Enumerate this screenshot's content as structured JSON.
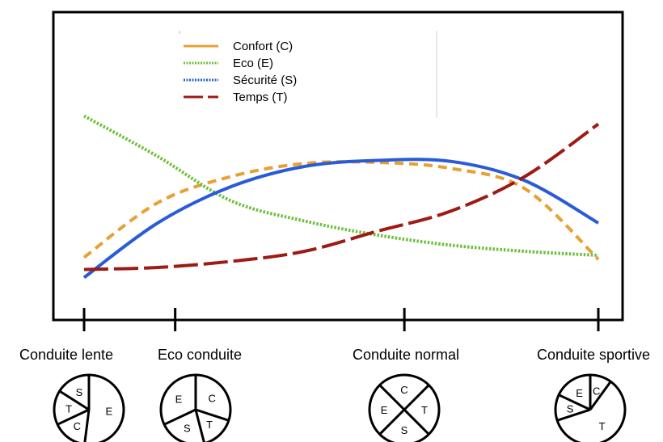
{
  "chart_data": {
    "type": "line",
    "title": "",
    "xlabel": "",
    "ylabel": "",
    "x": [
      0,
      0.5,
      1.0,
      1.5,
      2.0,
      2.5,
      3.0,
      3.5
    ],
    "grid": false,
    "legend_position": "top-left",
    "series": [
      {
        "name": "Confort (C)",
        "color": "#e8a033",
        "style": "dashed",
        "values": [
          1.5,
          4.2,
          5.5,
          6.15,
          6.2,
          5.9,
          4.9,
          1.4
        ]
      },
      {
        "name": "Eco (E)",
        "color": "#6cbf3c",
        "style": "dotted",
        "values": [
          8.5,
          6.5,
          4.3,
          3.3,
          2.6,
          2.1,
          1.8,
          1.6
        ]
      },
      {
        "name": "Sécurité (S)",
        "color": "#2a5bd7",
        "style": "dotted",
        "line_drawn_as": "solid",
        "values": [
          0.5,
          3.2,
          5.0,
          6.0,
          6.3,
          6.25,
          5.3,
          3.2
        ]
      },
      {
        "name": "Temps (T)",
        "color": "#9e1a14",
        "style": "long-dashed",
        "values": [
          0.9,
          1.0,
          1.3,
          1.8,
          2.8,
          3.8,
          5.5,
          8.1
        ]
      }
    ],
    "driving_modes": [
      {
        "label": "Conduite lente",
        "x": 0.0,
        "slices": [
          {
            "label": "E",
            "share": 0.52
          },
          {
            "label": "C",
            "share": 0.16
          },
          {
            "label": "T",
            "share": 0.16
          },
          {
            "label": "S",
            "share": 0.16
          }
        ]
      },
      {
        "label": "Eco conduite",
        "x": 0.62,
        "slices": [
          {
            "label": "C",
            "share": 0.3
          },
          {
            "label": "T",
            "share": 0.16
          },
          {
            "label": "S",
            "share": 0.22
          },
          {
            "label": "E",
            "share": 0.32
          }
        ]
      },
      {
        "label": "Conduite  normal",
        "x": 2.18,
        "slices": [
          {
            "label": "C",
            "share": 0.25
          },
          {
            "label": "T",
            "share": 0.25
          },
          {
            "label": "S",
            "share": 0.25
          },
          {
            "label": "E",
            "share": 0.25
          }
        ]
      },
      {
        "label": "Conduite sportive",
        "x": 3.5,
        "slices": [
          {
            "label": "C",
            "share": 0.1
          },
          {
            "label": "T",
            "share": 0.6
          },
          {
            "label": "S",
            "share": 0.12
          },
          {
            "label": "E",
            "share": 0.18
          }
        ]
      }
    ]
  }
}
